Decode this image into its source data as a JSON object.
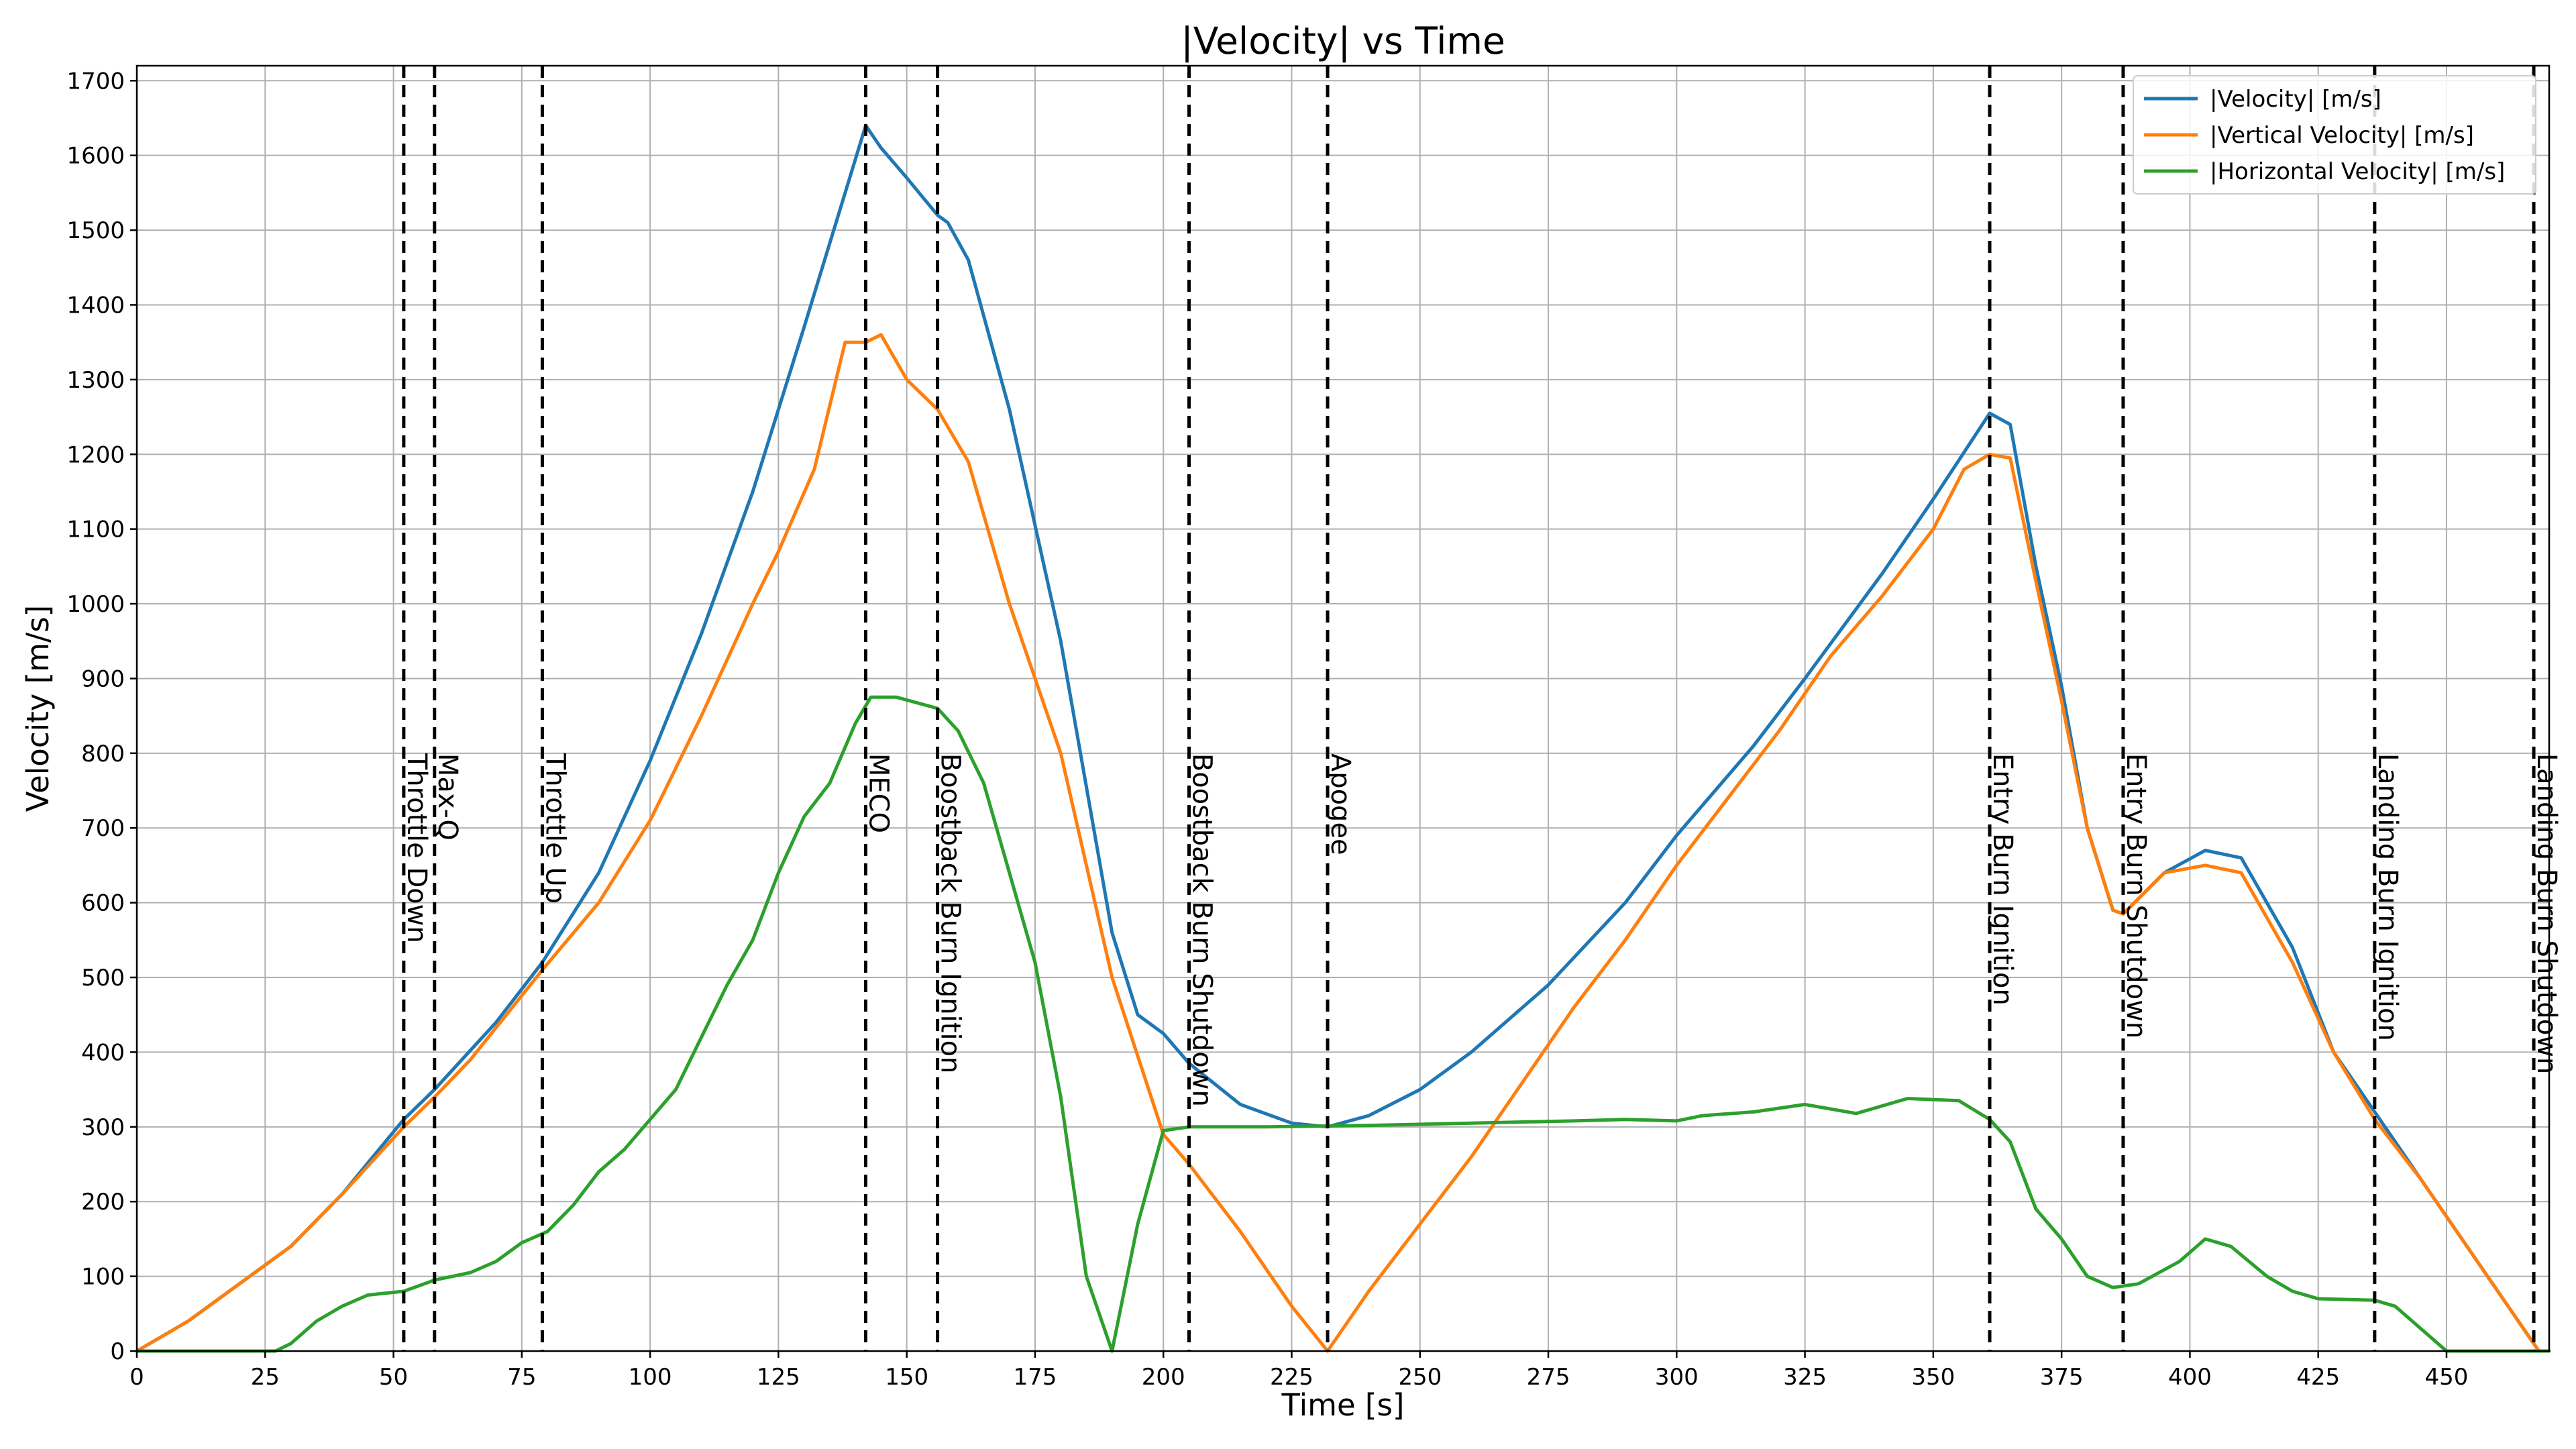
{
  "chart_data": {
    "type": "line",
    "title": "|Velocity| vs Time",
    "xlabel": "Time [s]",
    "ylabel": "Velocity [m/s]",
    "xlim": [
      0,
      470
    ],
    "ylim": [
      0,
      1720
    ],
    "xticks": [
      0,
      25,
      50,
      75,
      100,
      125,
      150,
      175,
      200,
      225,
      250,
      275,
      300,
      325,
      350,
      375,
      400,
      425,
      450
    ],
    "yticks": [
      0,
      100,
      200,
      300,
      400,
      500,
      600,
      700,
      800,
      900,
      1000,
      1100,
      1200,
      1300,
      1400,
      1500,
      1600,
      1700
    ],
    "grid": true,
    "legend_position": "top-right",
    "series": [
      {
        "name": "|Velocity| [m/s]",
        "color": "#1f77b4",
        "points": [
          [
            0,
            0
          ],
          [
            10,
            40
          ],
          [
            20,
            90
          ],
          [
            30,
            140
          ],
          [
            40,
            210
          ],
          [
            52,
            310
          ],
          [
            58,
            350
          ],
          [
            70,
            440
          ],
          [
            79,
            520
          ],
          [
            90,
            640
          ],
          [
            100,
            790
          ],
          [
            110,
            960
          ],
          [
            120,
            1150
          ],
          [
            130,
            1370
          ],
          [
            142,
            1640
          ],
          [
            145,
            1610
          ],
          [
            150,
            1570
          ],
          [
            156,
            1520
          ],
          [
            158,
            1510
          ],
          [
            162,
            1460
          ],
          [
            170,
            1260
          ],
          [
            180,
            950
          ],
          [
            190,
            560
          ],
          [
            195,
            450
          ],
          [
            200,
            425
          ],
          [
            205,
            385
          ],
          [
            215,
            330
          ],
          [
            225,
            305
          ],
          [
            232,
            300
          ],
          [
            240,
            315
          ],
          [
            250,
            350
          ],
          [
            260,
            400
          ],
          [
            275,
            490
          ],
          [
            290,
            600
          ],
          [
            300,
            690
          ],
          [
            315,
            810
          ],
          [
            325,
            900
          ],
          [
            340,
            1040
          ],
          [
            350,
            1140
          ],
          [
            361,
            1255
          ],
          [
            365,
            1240
          ],
          [
            370,
            1050
          ],
          [
            375,
            890
          ],
          [
            380,
            700
          ],
          [
            385,
            590
          ],
          [
            387,
            585
          ],
          [
            395,
            640
          ],
          [
            403,
            670
          ],
          [
            410,
            660
          ],
          [
            420,
            540
          ],
          [
            428,
            400
          ],
          [
            436,
            320
          ],
          [
            445,
            230
          ],
          [
            455,
            130
          ],
          [
            465,
            30
          ],
          [
            468,
            0
          ]
        ]
      },
      {
        "name": "|Vertical Velocity| [m/s]",
        "color": "#ff7f0e",
        "points": [
          [
            0,
            0
          ],
          [
            10,
            40
          ],
          [
            20,
            90
          ],
          [
            30,
            140
          ],
          [
            40,
            210
          ],
          [
            52,
            300
          ],
          [
            58,
            340
          ],
          [
            65,
            390
          ],
          [
            79,
            510
          ],
          [
            90,
            600
          ],
          [
            100,
            710
          ],
          [
            110,
            850
          ],
          [
            120,
            1000
          ],
          [
            125,
            1070
          ],
          [
            132,
            1180
          ],
          [
            138,
            1350
          ],
          [
            142,
            1350
          ],
          [
            145,
            1360
          ],
          [
            150,
            1300
          ],
          [
            156,
            1260
          ],
          [
            162,
            1190
          ],
          [
            170,
            1000
          ],
          [
            180,
            800
          ],
          [
            190,
            500
          ],
          [
            200,
            290
          ],
          [
            205,
            250
          ],
          [
            215,
            160
          ],
          [
            225,
            60
          ],
          [
            232,
            0
          ],
          [
            240,
            80
          ],
          [
            250,
            170
          ],
          [
            260,
            260
          ],
          [
            270,
            360
          ],
          [
            280,
            460
          ],
          [
            290,
            550
          ],
          [
            300,
            650
          ],
          [
            310,
            740
          ],
          [
            320,
            830
          ],
          [
            330,
            930
          ],
          [
            340,
            1010
          ],
          [
            350,
            1100
          ],
          [
            356,
            1180
          ],
          [
            361,
            1200
          ],
          [
            365,
            1195
          ],
          [
            370,
            1030
          ],
          [
            375,
            870
          ],
          [
            380,
            700
          ],
          [
            385,
            590
          ],
          [
            387,
            585
          ],
          [
            395,
            640
          ],
          [
            403,
            650
          ],
          [
            410,
            640
          ],
          [
            420,
            520
          ],
          [
            428,
            400
          ],
          [
            436,
            310
          ],
          [
            445,
            230
          ],
          [
            455,
            130
          ],
          [
            465,
            30
          ],
          [
            468,
            0
          ]
        ]
      },
      {
        "name": "|Horizontal Velocity| [m/s]",
        "color": "#2ca02c",
        "points": [
          [
            0,
            0
          ],
          [
            27,
            0
          ],
          [
            30,
            10
          ],
          [
            35,
            40
          ],
          [
            40,
            60
          ],
          [
            45,
            75
          ],
          [
            52,
            80
          ],
          [
            58,
            95
          ],
          [
            65,
            105
          ],
          [
            70,
            120
          ],
          [
            75,
            145
          ],
          [
            80,
            160
          ],
          [
            85,
            195
          ],
          [
            90,
            240
          ],
          [
            95,
            270
          ],
          [
            100,
            310
          ],
          [
            105,
            350
          ],
          [
            110,
            420
          ],
          [
            115,
            490
          ],
          [
            120,
            550
          ],
          [
            125,
            640
          ],
          [
            130,
            715
          ],
          [
            135,
            760
          ],
          [
            140,
            840
          ],
          [
            143,
            875
          ],
          [
            148,
            875
          ],
          [
            156,
            860
          ],
          [
            160,
            830
          ],
          [
            165,
            760
          ],
          [
            170,
            640
          ],
          [
            175,
            520
          ],
          [
            180,
            340
          ],
          [
            185,
            100
          ],
          [
            190,
            0
          ],
          [
            195,
            170
          ],
          [
            200,
            295
          ],
          [
            205,
            300
          ],
          [
            220,
            300
          ],
          [
            240,
            302
          ],
          [
            260,
            305
          ],
          [
            280,
            308
          ],
          [
            290,
            310
          ],
          [
            300,
            308
          ],
          [
            305,
            315
          ],
          [
            315,
            320
          ],
          [
            325,
            330
          ],
          [
            335,
            318
          ],
          [
            345,
            338
          ],
          [
            355,
            335
          ],
          [
            361,
            310
          ],
          [
            365,
            280
          ],
          [
            370,
            190
          ],
          [
            375,
            150
          ],
          [
            380,
            100
          ],
          [
            385,
            85
          ],
          [
            390,
            90
          ],
          [
            398,
            120
          ],
          [
            403,
            150
          ],
          [
            408,
            140
          ],
          [
            415,
            100
          ],
          [
            420,
            80
          ],
          [
            425,
            70
          ],
          [
            436,
            68
          ],
          [
            440,
            60
          ],
          [
            445,
            30
          ],
          [
            450,
            0
          ],
          [
            470,
            0
          ]
        ]
      }
    ],
    "events": [
      {
        "time": 52,
        "label": "Throttle Down"
      },
      {
        "time": 58,
        "label": "Max-Q"
      },
      {
        "time": 79,
        "label": "Throttle Up"
      },
      {
        "time": 142,
        "label": "MECO"
      },
      {
        "time": 156,
        "label": "Boostback Burn Ignition"
      },
      {
        "time": 205,
        "label": "Boostback Burn Shutdown"
      },
      {
        "time": 232,
        "label": "Apogee"
      },
      {
        "time": 361,
        "label": "Entry Burn Ignition"
      },
      {
        "time": 387,
        "label": "Entry Burn Shutdown"
      },
      {
        "time": 436,
        "label": "Landing Burn Ignition"
      },
      {
        "time": 467,
        "label": "Landing Burn Shutdown"
      }
    ]
  }
}
